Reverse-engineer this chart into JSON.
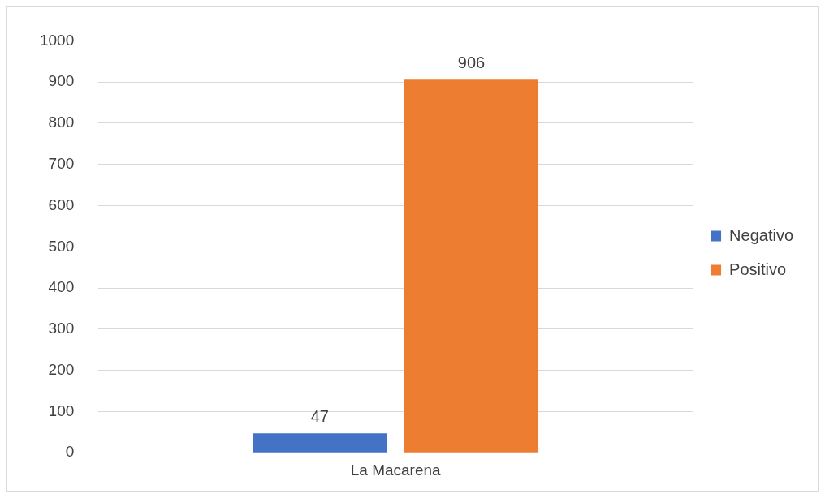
{
  "chart_data": {
    "type": "bar",
    "categories": [
      "La Macarena"
    ],
    "series": [
      {
        "name": "Negativo",
        "color": "#4472c4",
        "values": [
          47
        ]
      },
      {
        "name": "Positivo",
        "color": "#ed7d31",
        "values": [
          906
        ]
      }
    ],
    "ylim": [
      0,
      1000
    ],
    "yticks": [
      0,
      100,
      200,
      300,
      400,
      500,
      600,
      700,
      800,
      900,
      1000
    ],
    "grid": "y",
    "legend": "right",
    "data_labels": true
  }
}
